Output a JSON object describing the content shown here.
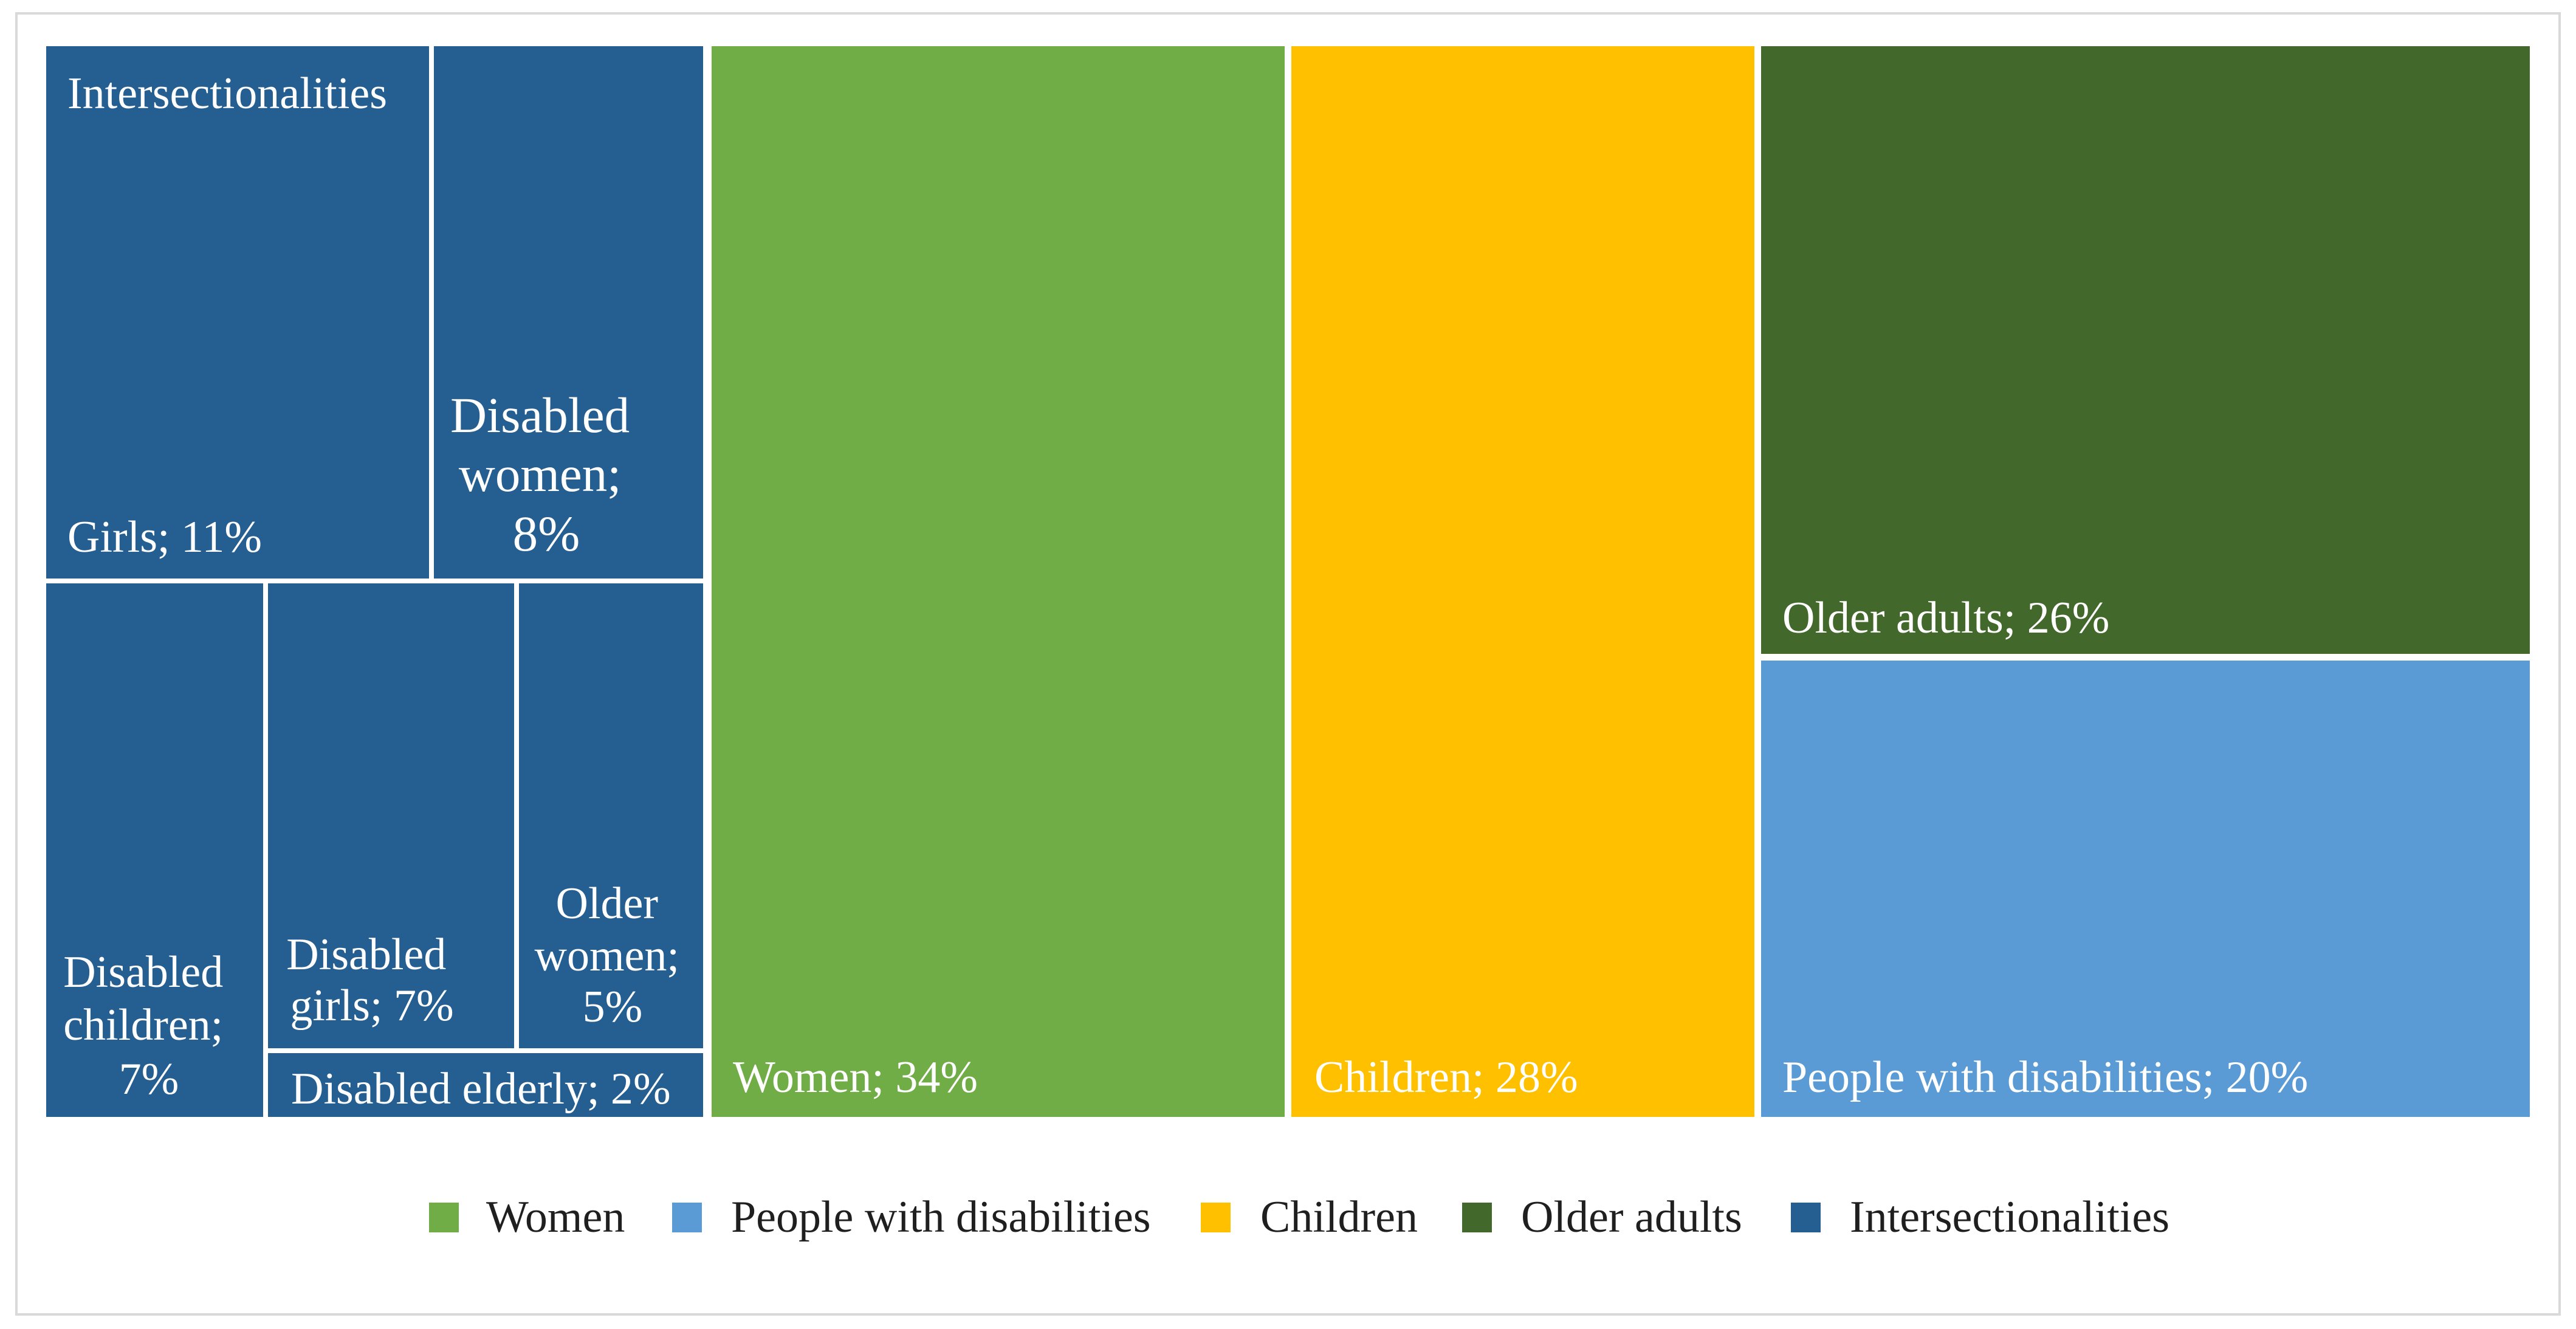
{
  "chart_data": {
    "type": "treemap",
    "unit": "%",
    "nodes": [
      {
        "name": "Intersectionalities",
        "color": "#255E91",
        "children": [
          {
            "name": "Girls",
            "value": 11
          },
          {
            "name": "Disabled women",
            "value": 8
          },
          {
            "name": "Disabled children",
            "value": 7
          },
          {
            "name": "Disabled girls",
            "value": 7
          },
          {
            "name": "Older women",
            "value": 5
          },
          {
            "name": "Disabled elderly",
            "value": 2
          }
        ]
      },
      {
        "name": "Women",
        "value": 34,
        "color": "#70AD47"
      },
      {
        "name": "Children",
        "value": 28,
        "color": "#FFC000"
      },
      {
        "name": "Older adults",
        "value": 26,
        "color": "#43682B"
      },
      {
        "name": "People with disabilities",
        "value": 20,
        "color": "#5B9BD5"
      }
    ],
    "legend": {
      "position": "bottom",
      "items": [
        "Women",
        "People with disabilities",
        "Children",
        "Older adults",
        "Intersectionalities"
      ]
    }
  }
}
